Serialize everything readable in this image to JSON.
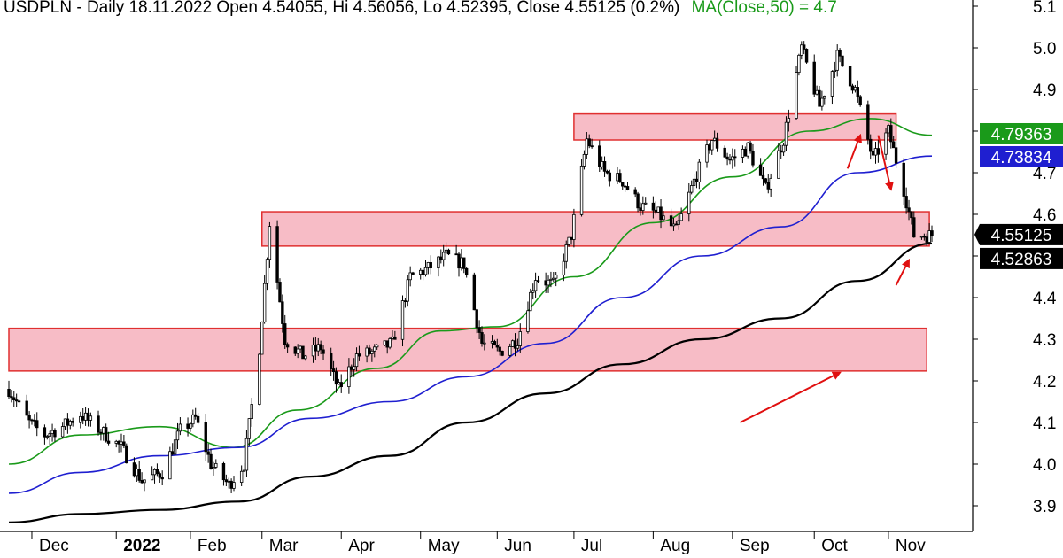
{
  "chart_data": {
    "type": "candlestick",
    "title": "USDPLN - Daily 18.11.2022 Open 4.54055, Hi 4.56056, Lo 4.52395, Close 4.55125 (0.2%)",
    "ma_label": "MA(Close,50) = 4.7",
    "ylim": [
      3.86,
      5.12
    ],
    "y_ticks": [
      "3.9",
      "4.0",
      "4.1",
      "4.2",
      "4.3",
      "4.4",
      "4.5",
      "4.6",
      "4.7",
      "4.8",
      "4.9",
      "5.0",
      "5.1"
    ],
    "x_labels": [
      {
        "label": "Dec",
        "date": "2021-12-01"
      },
      {
        "label": "2022",
        "date": "2022-01-03",
        "bold": true
      },
      {
        "label": "Feb",
        "date": "2022-02-01"
      },
      {
        "label": "Mar",
        "date": "2022-03-01"
      },
      {
        "label": "Apr",
        "date": "2022-04-01"
      },
      {
        "label": "May",
        "date": "2022-05-02"
      },
      {
        "label": "Jun",
        "date": "2022-06-01"
      },
      {
        "label": "Jul",
        "date": "2022-07-01"
      },
      {
        "label": "Aug",
        "date": "2022-08-01"
      },
      {
        "label": "Sep",
        "date": "2022-09-01"
      },
      {
        "label": "Oct",
        "date": "2022-10-03"
      },
      {
        "label": "Nov",
        "date": "2022-11-01"
      }
    ],
    "date_range": [
      "2021-11-22",
      "2022-11-18"
    ],
    "price_path": [
      [
        "2021-11-22",
        4.18
      ],
      [
        "2021-11-30",
        4.1
      ],
      [
        "2021-12-06",
        4.07
      ],
      [
        "2021-12-13",
        4.09
      ],
      [
        "2021-12-20",
        4.12
      ],
      [
        "2021-12-28",
        4.08
      ],
      [
        "2022-01-05",
        4.04
      ],
      [
        "2022-01-13",
        3.96
      ],
      [
        "2022-01-21",
        3.98
      ],
      [
        "2022-01-28",
        4.08
      ],
      [
        "2022-02-03",
        4.11
      ],
      [
        "2022-02-09",
        4.0
      ],
      [
        "2022-02-16",
        3.95
      ],
      [
        "2022-02-22",
        4.0
      ],
      [
        "2022-02-28",
        4.28
      ],
      [
        "2022-03-04",
        4.58
      ],
      [
        "2022-03-10",
        4.3
      ],
      [
        "2022-03-17",
        4.26
      ],
      [
        "2022-03-24",
        4.28
      ],
      [
        "2022-03-31",
        4.18
      ],
      [
        "2022-04-07",
        4.26
      ],
      [
        "2022-04-14",
        4.27
      ],
      [
        "2022-04-21",
        4.29
      ],
      [
        "2022-04-28",
        4.45
      ],
      [
        "2022-05-05",
        4.47
      ],
      [
        "2022-05-12",
        4.5
      ],
      [
        "2022-05-19",
        4.48
      ],
      [
        "2022-05-26",
        4.29
      ],
      [
        "2022-06-02",
        4.27
      ],
      [
        "2022-06-09",
        4.3
      ],
      [
        "2022-06-16",
        4.45
      ],
      [
        "2022-06-23",
        4.43
      ],
      [
        "2022-06-30",
        4.55
      ],
      [
        "2022-07-06",
        4.78
      ],
      [
        "2022-07-13",
        4.7
      ],
      [
        "2022-07-20",
        4.68
      ],
      [
        "2022-07-27",
        4.62
      ],
      [
        "2022-08-03",
        4.6
      ],
      [
        "2022-08-10",
        4.56
      ],
      [
        "2022-08-17",
        4.68
      ],
      [
        "2022-08-24",
        4.78
      ],
      [
        "2022-08-31",
        4.73
      ],
      [
        "2022-09-07",
        4.76
      ],
      [
        "2022-09-14",
        4.66
      ],
      [
        "2022-09-21",
        4.78
      ],
      [
        "2022-09-28",
        5.0
      ],
      [
        "2022-10-05",
        4.86
      ],
      [
        "2022-10-12",
        4.98
      ],
      [
        "2022-10-19",
        4.9
      ],
      [
        "2022-10-26",
        4.73
      ],
      [
        "2022-11-01",
        4.8
      ],
      [
        "2022-11-07",
        4.66
      ],
      [
        "2022-11-11",
        4.55
      ],
      [
        "2022-11-18",
        4.55
      ]
    ],
    "series": [
      {
        "color": "#1a9a1a",
        "points": [
          [
            "2021-11-22",
            4.0
          ],
          [
            "2021-12-20",
            4.07
          ],
          [
            "2022-01-20",
            4.09
          ],
          [
            "2022-02-18",
            4.04
          ],
          [
            "2022-03-15",
            4.13
          ],
          [
            "2022-04-15",
            4.23
          ],
          [
            "2022-05-10",
            4.32
          ],
          [
            "2022-06-01",
            4.33
          ],
          [
            "2022-07-01",
            4.45
          ],
          [
            "2022-08-01",
            4.58
          ],
          [
            "2022-09-01",
            4.69
          ],
          [
            "2022-10-01",
            4.8
          ],
          [
            "2022-10-25",
            4.83
          ],
          [
            "2022-11-18",
            4.79
          ]
        ]
      },
      {
        "color": "#1f1fd0",
        "points": [
          [
            "2021-11-22",
            3.93
          ],
          [
            "2021-12-20",
            3.98
          ],
          [
            "2022-01-20",
            4.02
          ],
          [
            "2022-02-20",
            4.04
          ],
          [
            "2022-03-20",
            4.11
          ],
          [
            "2022-04-20",
            4.15
          ],
          [
            "2022-05-20",
            4.21
          ],
          [
            "2022-06-20",
            4.29
          ],
          [
            "2022-07-20",
            4.4
          ],
          [
            "2022-08-20",
            4.5
          ],
          [
            "2022-09-20",
            4.57
          ],
          [
            "2022-10-20",
            4.7
          ],
          [
            "2022-11-18",
            4.74
          ]
        ]
      },
      {
        "color": "#000000",
        "points": [
          [
            "2021-11-22",
            3.86
          ],
          [
            "2021-12-20",
            3.88
          ],
          [
            "2022-01-20",
            3.89
          ],
          [
            "2022-02-20",
            3.91
          ],
          [
            "2022-03-20",
            3.97
          ],
          [
            "2022-04-20",
            4.02
          ],
          [
            "2022-05-20",
            4.1
          ],
          [
            "2022-06-20",
            4.17
          ],
          [
            "2022-07-20",
            4.24
          ],
          [
            "2022-08-20",
            4.3
          ],
          [
            "2022-09-20",
            4.35
          ],
          [
            "2022-10-20",
            4.44
          ],
          [
            "2022-11-18",
            4.53
          ]
        ]
      }
    ],
    "price_badges": [
      {
        "value": 4.79363,
        "text": "4.79363",
        "bg": "#1a9a1a",
        "fg": "#ffffff"
      },
      {
        "value": 4.73834,
        "text": "4.73834",
        "bg": "#1f1fd0",
        "fg": "#ffffff"
      },
      {
        "value": 4.55125,
        "text": "4.55125",
        "bg": "#000000",
        "fg": "#ffffff",
        "pointer": true
      },
      {
        "value": 4.52863,
        "text": "4.52863",
        "bg": "#000000",
        "fg": "#ffffff"
      }
    ],
    "zones": [
      {
        "from": "2022-07-01",
        "to": "2022-11-04",
        "low": 4.8,
        "high": 4.82
      },
      {
        "from": "2022-03-01",
        "to": "2022-11-17",
        "low": 4.545,
        "high": 4.585
      },
      {
        "from": "2021-11-22",
        "to": "2022-11-16",
        "low": 4.245,
        "high": 4.305
      }
    ],
    "arrows": [
      {
        "from": [
          "2022-10-16",
          4.71
        ],
        "to": [
          "2022-10-21",
          4.79
        ]
      },
      {
        "from": [
          "2022-10-28",
          4.79
        ],
        "to": [
          "2022-11-02",
          4.66
        ]
      },
      {
        "from": [
          "2022-11-04",
          4.43
        ],
        "to": [
          "2022-11-09",
          4.49
        ]
      },
      {
        "from": [
          "2022-09-04",
          4.1
        ],
        "to": [
          "2022-10-13",
          4.22
        ]
      }
    ],
    "colors": {
      "zone_fill": "#f7bcc6",
      "zone_stroke": "#e03030",
      "arrow": "#e01010",
      "candle": "#000000"
    }
  }
}
